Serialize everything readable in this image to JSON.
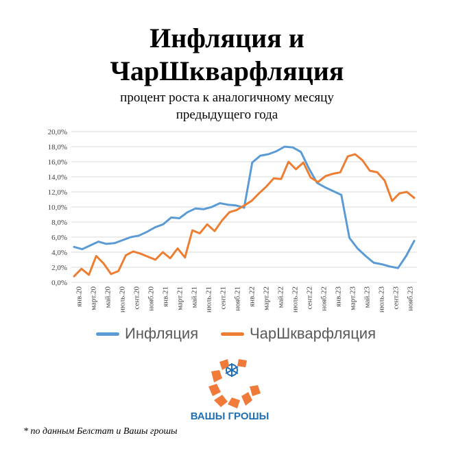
{
  "title_line1": "Инфляция и",
  "title_line2": "ЧарШкварфляция",
  "subtitle_line1": "процент роста к аналогичному месяцу",
  "subtitle_line2": "предыдущего года",
  "footnote": "* по данным Белстат и Вашы грошы",
  "logo": {
    "text": "ВАШЫ ГРОШЫ",
    "colors": [
      "#f07a3a",
      "#1f6fb5"
    ]
  },
  "chart_data": {
    "type": "line",
    "ylim": [
      0,
      20
    ],
    "yticks": [
      "0,0%",
      "2,0%",
      "4,0%",
      "6,0%",
      "8,0%",
      "10,0%",
      "12,0%",
      "14,0%",
      "16,0%",
      "18,0%",
      "20,0%"
    ],
    "ytick_values": [
      0,
      2,
      4,
      6,
      8,
      10,
      12,
      14,
      16,
      18,
      20
    ],
    "grid": true,
    "legend": "bottom",
    "x_labels": [
      "янв.20",
      "март.20",
      "май.20",
      "июль.20",
      "сент.20",
      "нояб.20",
      "янв.21",
      "март.21",
      "май.21",
      "июль.21",
      "сент.21",
      "нояб.21",
      "янв.22",
      "март.22",
      "май.22",
      "июль.22",
      "сент.22",
      "нояб.22",
      "янв.23",
      "март.23",
      "май.23",
      "июль.23",
      "сент.23",
      "нояб.23"
    ],
    "series": [
      {
        "name": "Инфляция",
        "color": "#5b9bd5",
        "values": [
          4.7,
          4.4,
          4.9,
          5.4,
          5.1,
          5.2,
          5.6,
          6.0,
          6.2,
          6.7,
          7.3,
          7.7,
          8.6,
          8.5,
          9.3,
          9.8,
          9.7,
          10.0,
          10.5,
          10.3,
          10.2,
          9.9,
          15.9,
          16.8,
          17.0,
          17.4,
          18.0,
          17.9,
          17.3,
          15.1,
          13.2,
          12.6,
          12.1,
          11.6,
          5.9,
          4.5,
          3.5,
          2.6,
          2.4,
          2.1,
          1.9,
          3.5,
          5.5
        ]
      },
      {
        "name": "ЧарШкварфляция",
        "color": "#ed7d31",
        "values": [
          0.8,
          1.8,
          1.0,
          3.5,
          2.5,
          1.1,
          1.5,
          3.6,
          4.1,
          3.8,
          3.4,
          3.0,
          4.0,
          3.2,
          4.5,
          3.3,
          6.9,
          6.5,
          7.7,
          6.8,
          8.2,
          9.3,
          9.6,
          10.2,
          10.8,
          11.8,
          12.7,
          13.8,
          13.7,
          16.0,
          15.0,
          15.9,
          13.9,
          13.3,
          14.1,
          14.4,
          14.6,
          16.7,
          17.0,
          16.2,
          14.8,
          14.6,
          13.5,
          10.8,
          11.8,
          12.0,
          11.2
        ]
      }
    ]
  }
}
